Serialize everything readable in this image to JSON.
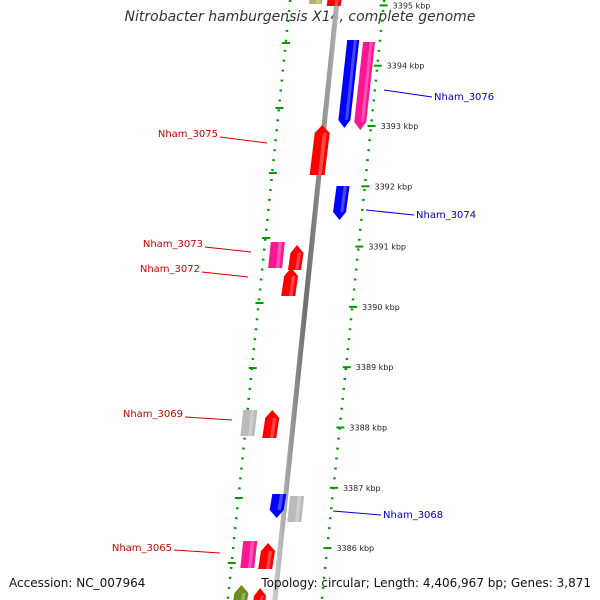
{
  "title": "Nitrobacter hamburgensis X14, complete genome",
  "footer": {
    "accession": "Accession: NC_007964",
    "topology": "Topology: circular; Length: 4,406,967 bp; Genes: 3,871"
  },
  "colors": {
    "forward_label": "#cc0000",
    "reverse_label": "#0000cc",
    "tick": "#009900",
    "backbone": "#888888"
  },
  "ticks": [
    {
      "label": "3395 kbp",
      "value": 3395
    },
    {
      "label": "3394 kbp",
      "value": 3394
    },
    {
      "label": "3393 kbp",
      "value": 3393
    },
    {
      "label": "3392 kbp",
      "value": 3392
    },
    {
      "label": "3391 kbp",
      "value": 3391
    },
    {
      "label": "3390 kbp",
      "value": 3390
    },
    {
      "label": "3389 kbp",
      "value": 3389
    },
    {
      "label": "3388 kbp",
      "value": 3388
    },
    {
      "label": "3387 kbp",
      "value": 3387
    },
    {
      "label": "3386 kbp",
      "value": 3386
    }
  ],
  "gene_labels": [
    {
      "name": "Nham_3076",
      "strand": "reverse"
    },
    {
      "name": "Nham_3075",
      "strand": "forward"
    },
    {
      "name": "Nham_3074",
      "strand": "reverse"
    },
    {
      "name": "Nham_3073",
      "strand": "forward"
    },
    {
      "name": "Nham_3072",
      "strand": "forward"
    },
    {
      "name": "Nham_3069",
      "strand": "forward"
    },
    {
      "name": "Nham_3068",
      "strand": "reverse"
    },
    {
      "name": "Nham_3065",
      "strand": "forward"
    }
  ],
  "features": [
    {
      "kind": "cds",
      "strand": "forward",
      "color": "#b5b36a"
    },
    {
      "kind": "cds",
      "strand": "forward",
      "color": "#ff0000"
    },
    {
      "kind": "cds",
      "strand": "reverse",
      "color": "#0000ff"
    },
    {
      "kind": "cds",
      "strand": "reverse",
      "color": "#ff1493"
    },
    {
      "kind": "cds",
      "strand": "forward",
      "color": "#ff0000"
    },
    {
      "kind": "cds",
      "strand": "reverse",
      "color": "#0000ff"
    },
    {
      "kind": "rna",
      "strand": "forward",
      "color": "#ff1493"
    },
    {
      "kind": "cds",
      "strand": "forward",
      "color": "#ff0000"
    },
    {
      "kind": "cds",
      "strand": "forward",
      "color": "#ff0000"
    },
    {
      "kind": "pseudo",
      "strand": "forward",
      "color": "#bbbbbb"
    },
    {
      "kind": "cds",
      "strand": "forward",
      "color": "#ff0000"
    },
    {
      "kind": "cds",
      "strand": "reverse",
      "color": "#0000ff"
    },
    {
      "kind": "pseudo",
      "strand": "reverse",
      "color": "#bbbbbb"
    },
    {
      "kind": "rna",
      "strand": "forward",
      "color": "#ff1493"
    },
    {
      "kind": "cds",
      "strand": "forward",
      "color": "#ff0000"
    },
    {
      "kind": "cds",
      "strand": "forward",
      "color": "#6b8e23"
    },
    {
      "kind": "cds",
      "strand": "forward",
      "color": "#ff0000"
    }
  ]
}
